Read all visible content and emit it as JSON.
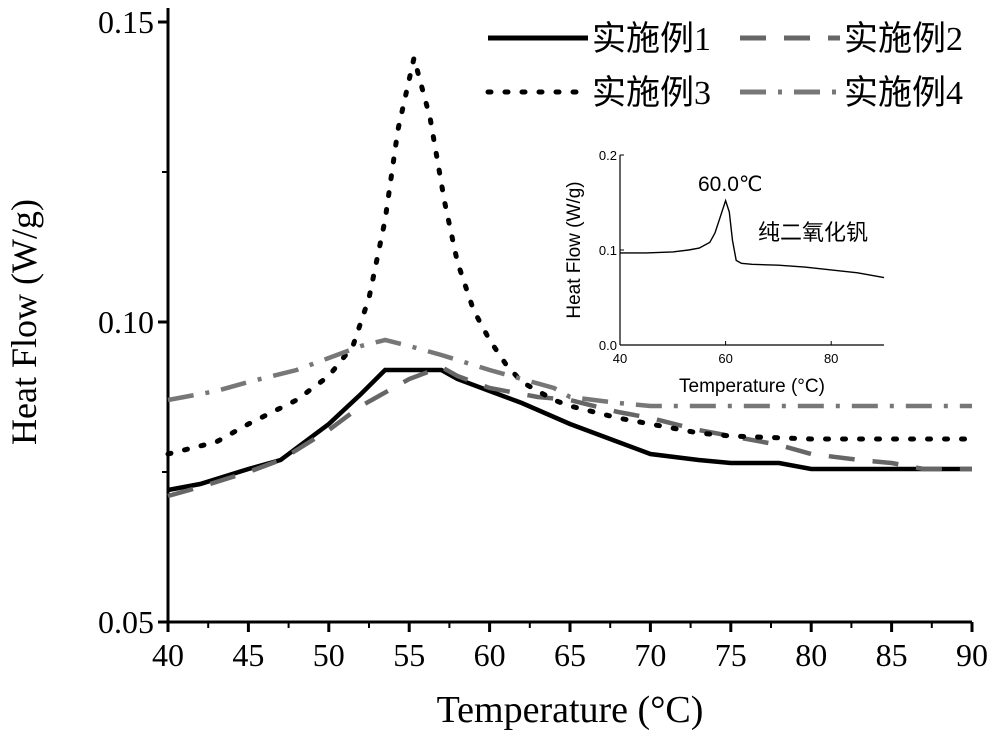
{
  "chart_data": {
    "type": "line",
    "xlabel": "Temperature (°C)",
    "ylabel": "Heat Flow (W/g)",
    "xlim": [
      40,
      90
    ],
    "ylim": [
      0.05,
      0.15
    ],
    "xticks": [
      "40",
      "45",
      "50",
      "55",
      "60",
      "65",
      "70",
      "75",
      "80",
      "85",
      "90"
    ],
    "yticks": [
      "0.05",
      "0.10",
      "0.15"
    ],
    "legend_position": "top-right",
    "series": [
      {
        "name": "实施例1",
        "style": "solid",
        "color": "#000000",
        "x": [
          40,
          42,
          45,
          47,
          50,
          52,
          53.5,
          55,
          57,
          58,
          60,
          62,
          65,
          68,
          70,
          73,
          75,
          78,
          80,
          85,
          90
        ],
        "y": [
          0.072,
          0.073,
          0.0755,
          0.077,
          0.083,
          0.088,
          0.092,
          0.092,
          0.092,
          0.0905,
          0.0885,
          0.0865,
          0.083,
          0.08,
          0.078,
          0.077,
          0.0765,
          0.0765,
          0.0755,
          0.0755,
          0.0755
        ]
      },
      {
        "name": "实施例2",
        "style": "dash",
        "color": "#666666",
        "x": [
          40,
          42,
          45,
          47,
          50,
          52,
          55,
          57,
          58,
          60,
          63,
          65,
          68,
          70,
          73,
          75,
          78,
          80,
          83,
          85,
          87,
          90
        ],
        "y": [
          0.071,
          0.0725,
          0.075,
          0.077,
          0.082,
          0.086,
          0.0905,
          0.0925,
          0.091,
          0.089,
          0.0875,
          0.087,
          0.085,
          0.084,
          0.082,
          0.081,
          0.0795,
          0.078,
          0.077,
          0.0765,
          0.0755,
          0.0755
        ]
      },
      {
        "name": "实施例3",
        "style": "dot",
        "color": "#000000",
        "x": [
          40,
          43,
          45,
          48,
          50,
          51.5,
          52.5,
          53.5,
          54.3,
          55.3,
          56.3,
          57.2,
          58,
          59,
          60,
          61,
          62,
          64,
          65,
          68,
          70,
          73,
          75,
          80,
          85,
          90
        ],
        "y": [
          0.078,
          0.08,
          0.083,
          0.087,
          0.091,
          0.096,
          0.104,
          0.117,
          0.132,
          0.144,
          0.134,
          0.12,
          0.11,
          0.102,
          0.097,
          0.093,
          0.09,
          0.087,
          0.086,
          0.084,
          0.083,
          0.0815,
          0.081,
          0.0805,
          0.0805,
          0.0805
        ]
      },
      {
        "name": "实施例4",
        "style": "dashdot",
        "color": "#777777",
        "x": [
          40,
          43,
          45,
          48,
          50,
          52,
          53.5,
          55,
          57,
          60,
          62,
          64,
          65,
          68,
          70,
          80,
          90
        ],
        "y": [
          0.087,
          0.0885,
          0.09,
          0.092,
          0.094,
          0.096,
          0.097,
          0.096,
          0.0945,
          0.092,
          0.0905,
          0.089,
          0.0875,
          0.0865,
          0.086,
          0.086,
          0.086
        ]
      }
    ],
    "inset": {
      "type": "line",
      "xlabel": "Temperature (°C)",
      "ylabel": "Heat Flow (W/g)",
      "xlim": [
        40,
        90
      ],
      "ylim": [
        0.0,
        0.2
      ],
      "xticks": [
        "40",
        "60",
        "80"
      ],
      "yticks": [
        "0.0",
        "0.1",
        "0.2"
      ],
      "annotation_peak": "60.0℃",
      "annotation_label": "纯二氧化钒",
      "series": [
        {
          "name": "纯二氧化钒",
          "x": [
            40,
            45,
            50,
            53,
            55,
            57,
            58,
            59,
            60,
            60.7,
            61.3,
            62,
            63,
            65,
            70,
            75,
            80,
            85,
            90
          ],
          "y": [
            0.097,
            0.097,
            0.098,
            0.1,
            0.102,
            0.108,
            0.118,
            0.135,
            0.152,
            0.14,
            0.11,
            0.089,
            0.086,
            0.085,
            0.084,
            0.082,
            0.079,
            0.076,
            0.071
          ]
        }
      ]
    }
  }
}
